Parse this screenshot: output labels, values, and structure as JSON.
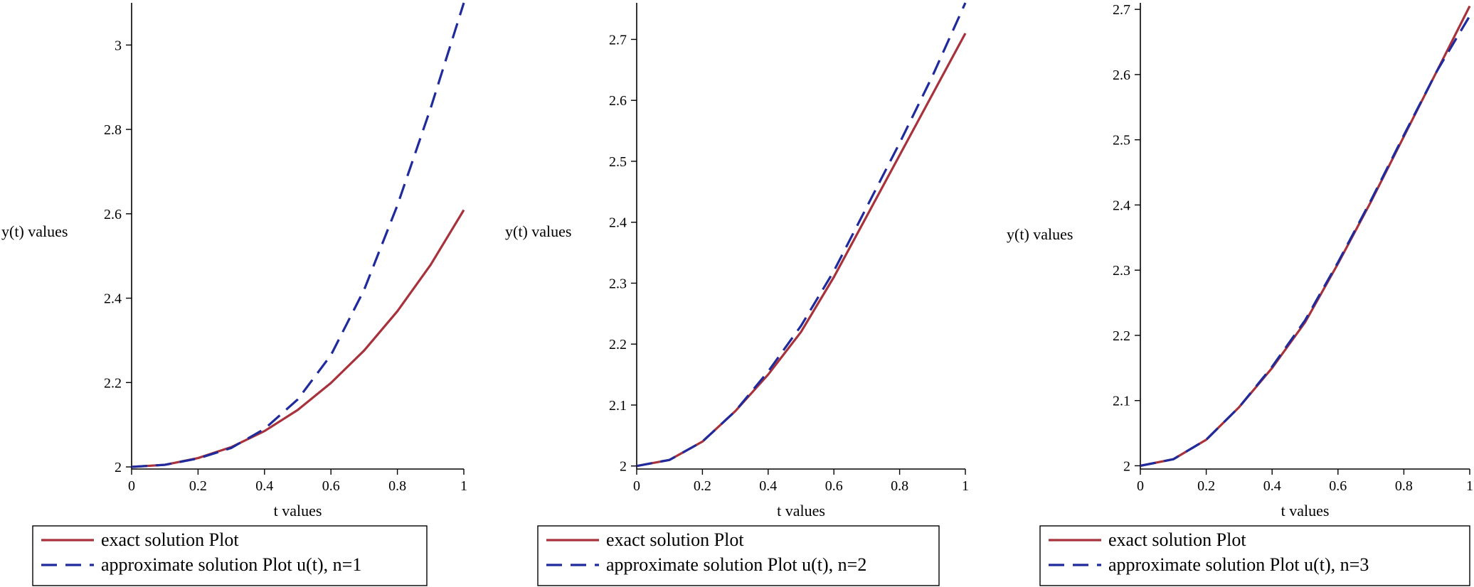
{
  "chart_data": [
    {
      "type": "line",
      "xlabel": "t values",
      "ylabel": "y(t)  values",
      "xlim": [
        0,
        1
      ],
      "ylim": [
        1.995,
        3.1
      ],
      "xticks": [
        0,
        0.2,
        0.4,
        0.6,
        0.8,
        1
      ],
      "xtick_labels": [
        "0",
        "0.2",
        "0.4",
        "0.6",
        "0.8",
        "1"
      ],
      "yticks": [
        2,
        2.2,
        2.4,
        2.6,
        2.8,
        3
      ],
      "ytick_labels": [
        "2",
        "2.2",
        "2.4",
        "2.6",
        "2.8",
        "3"
      ],
      "x": [
        0,
        0.1,
        0.2,
        0.3,
        0.4,
        0.5,
        0.6,
        0.7,
        0.8,
        0.9,
        1.0
      ],
      "series": [
        {
          "name": "exact solution Plot",
          "color": "#a8323c",
          "dash": "solid",
          "values": [
            2.0,
            2.005,
            2.021,
            2.047,
            2.085,
            2.135,
            2.199,
            2.276,
            2.369,
            2.479,
            2.609
          ]
        },
        {
          "name": "approximate solution Plot u(t), n=1",
          "color": "#1f2a9c",
          "dash": "dashed",
          "values": [
            2.0,
            2.005,
            2.02,
            2.045,
            2.09,
            2.16,
            2.265,
            2.42,
            2.62,
            2.85,
            3.1
          ]
        }
      ],
      "legend": [
        "exact solution Plot",
        "approximate solution Plot u(t), n=1"
      ],
      "legend_position": "bottom"
    },
    {
      "type": "line",
      "xlabel": "t values",
      "ylabel": "y(t)  values",
      "xlim": [
        0,
        1
      ],
      "ylim": [
        1.995,
        2.76
      ],
      "xticks": [
        0,
        0.2,
        0.4,
        0.6,
        0.8,
        1
      ],
      "xtick_labels": [
        "0",
        "0.2",
        "0.4",
        "0.6",
        "0.8",
        "1"
      ],
      "yticks": [
        2,
        2.1,
        2.2,
        2.3,
        2.4,
        2.5,
        2.6,
        2.7
      ],
      "ytick_labels": [
        "2",
        "2.1",
        "2.2",
        "2.3",
        "2.4",
        "2.5",
        "2.6",
        "2.7"
      ],
      "x": [
        0,
        0.1,
        0.2,
        0.3,
        0.4,
        0.5,
        0.6,
        0.7,
        0.8,
        0.9,
        1.0
      ],
      "series": [
        {
          "name": "exact solution Plot",
          "color": "#a8323c",
          "dash": "solid",
          "values": [
            2.0,
            2.01,
            2.04,
            2.09,
            2.15,
            2.22,
            2.31,
            2.41,
            2.51,
            2.61,
            2.71
          ]
        },
        {
          "name": "approximate solution Plot u(t), n=2",
          "color": "#1f2a9c",
          "dash": "dashed",
          "values": [
            2.0,
            2.01,
            2.04,
            2.09,
            2.155,
            2.23,
            2.32,
            2.425,
            2.53,
            2.64,
            2.76
          ]
        }
      ],
      "legend": [
        "exact solution Plot",
        "approximate solution Plot  u(t), n=2"
      ],
      "legend_position": "bottom"
    },
    {
      "type": "line",
      "xlabel": "t values",
      "ylabel": "y(t)  values",
      "xlim": [
        0,
        1
      ],
      "ylim": [
        1.995,
        2.71
      ],
      "xticks": [
        0,
        0.2,
        0.4,
        0.6,
        0.8,
        1
      ],
      "xtick_labels": [
        "0",
        "0.2",
        "0.4",
        "0.6",
        "0.8",
        "1"
      ],
      "yticks": [
        2,
        2.1,
        2.2,
        2.3,
        2.4,
        2.5,
        2.6,
        2.7
      ],
      "ytick_labels": [
        "2",
        "2.1",
        "2.2",
        "2.3",
        "2.4",
        "2.5",
        "2.6",
        "2.7"
      ],
      "x": [
        0,
        0.1,
        0.2,
        0.3,
        0.4,
        0.5,
        0.6,
        0.7,
        0.8,
        0.9,
        1.0
      ],
      "series": [
        {
          "name": "exact solution Plot",
          "color": "#a8323c",
          "dash": "solid",
          "values": [
            2.0,
            2.01,
            2.04,
            2.09,
            2.15,
            2.22,
            2.31,
            2.405,
            2.505,
            2.605,
            2.705
          ]
        },
        {
          "name": "approximate solution Plot u(t), n=3",
          "color": "#1f2a9c",
          "dash": "dashed",
          "values": [
            2.0,
            2.01,
            2.04,
            2.09,
            2.152,
            2.223,
            2.312,
            2.407,
            2.507,
            2.605,
            2.69
          ]
        }
      ],
      "legend": [
        "exact solution Plot",
        "approximate solution Plot  u(t), n=3"
      ],
      "legend_position": "bottom"
    }
  ]
}
